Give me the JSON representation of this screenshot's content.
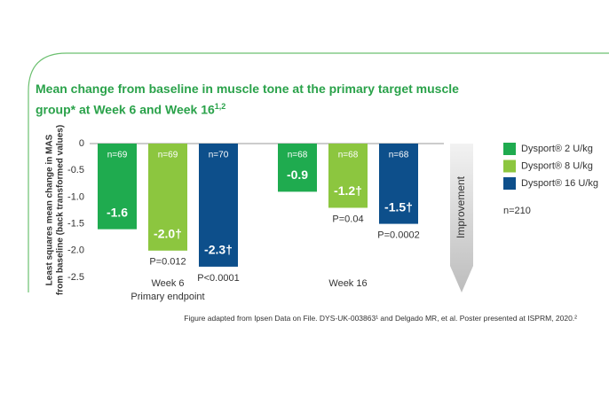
{
  "chart_data": {
    "type": "bar",
    "title": "Mean change from baseline in muscle tone at the primary target muscle group* at Week 6 and Week 16",
    "title_superscript": "1,2",
    "y_label": [
      "Least squares mean change in MAS",
      "from baseline (back transformed values)"
    ],
    "categories": [
      "Week 6",
      "Week 16"
    ],
    "primary_endpoint_label": "Primary endpoint",
    "ylim": [
      -2.5,
      0
    ],
    "yticks": [
      0,
      -0.5,
      {
        "value": -1,
        "label": "-1.0"
      },
      -1.5,
      {
        "value": -2,
        "label": "-2.0"
      },
      -2.5
    ],
    "series": [
      {
        "name": "Dysport® 2 U/kg",
        "color": "#1fab4f",
        "values": [
          -1.6,
          -0.9
        ],
        "value_labels": [
          "-1.6",
          "-0.9"
        ],
        "n_labels": [
          "n=69",
          "n=68"
        ]
      },
      {
        "name": "Dysport® 8 U/kg",
        "color": "#8cc63f",
        "values": [
          -2.0,
          -1.2
        ],
        "value_labels": [
          "-2.0†",
          "-1.2†"
        ],
        "n_labels": [
          "n=69",
          "n=68"
        ],
        "p_labels": [
          "P=0.012",
          "P=0.04"
        ]
      },
      {
        "name": "Dysport® 16 U/kg",
        "color": "#0d4f8b",
        "values": [
          -2.3,
          -1.5
        ],
        "value_labels": [
          "-2.3†",
          "-1.5†"
        ],
        "n_labels": [
          "n=70",
          "n=68"
        ],
        "p_labels": [
          "P<0.0001",
          "P=0.0002"
        ]
      }
    ],
    "total_n": "n=210",
    "arrow_label": "Improvement",
    "footnote": "Figure adapted from Ipsen Data on File. DYS-UK-003863¹ and Delgado MR, et al. Poster presented at ISPRM, 2020.²"
  }
}
